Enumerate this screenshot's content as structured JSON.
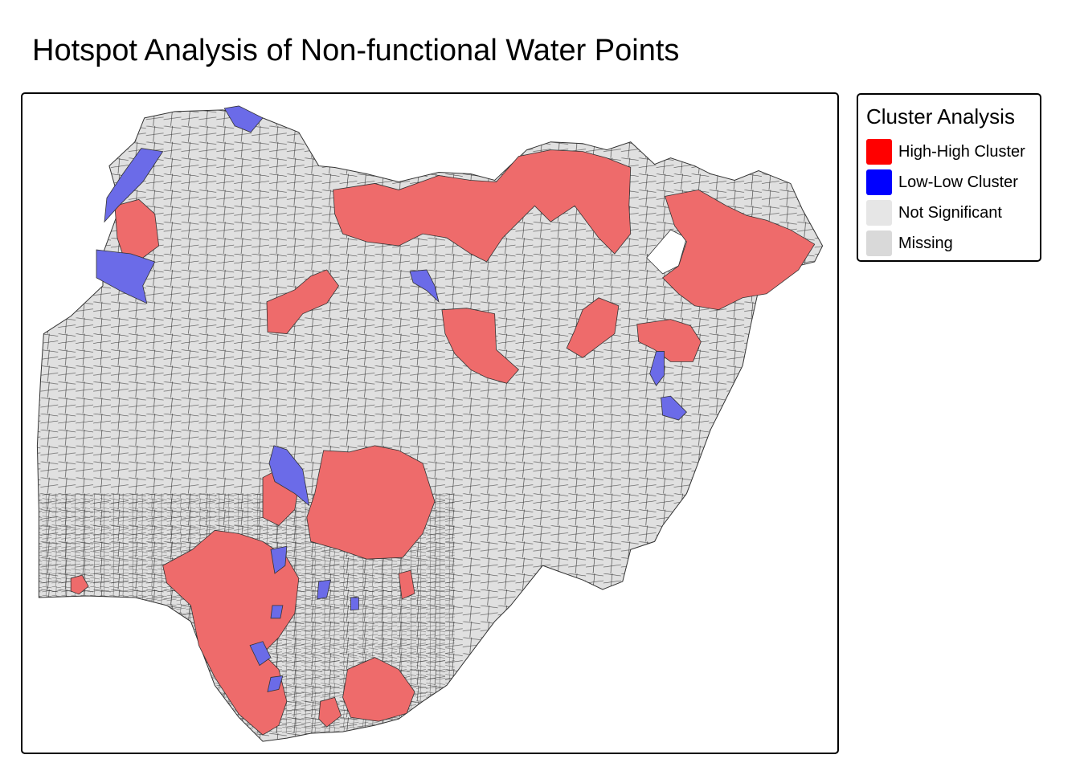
{
  "title": "Hotspot Analysis of Non-functional Water Points",
  "legend": {
    "title": "Cluster Analysis",
    "items": [
      {
        "label": "High-High Cluster",
        "color": "#ff0000",
        "fill": "#ee6b6b"
      },
      {
        "label": "Low-Low Cluster",
        "color": "#0000ff",
        "fill": "#6b6be8"
      },
      {
        "label": "Not Significant",
        "color": "#e6e6e6",
        "fill": "#e0e0e0"
      },
      {
        "label": "Missing",
        "color": "#d9d9d9",
        "fill": "#d9d9d9"
      }
    ]
  },
  "map": {
    "boundary_color": "#333333",
    "background_color": "#ffffff"
  }
}
